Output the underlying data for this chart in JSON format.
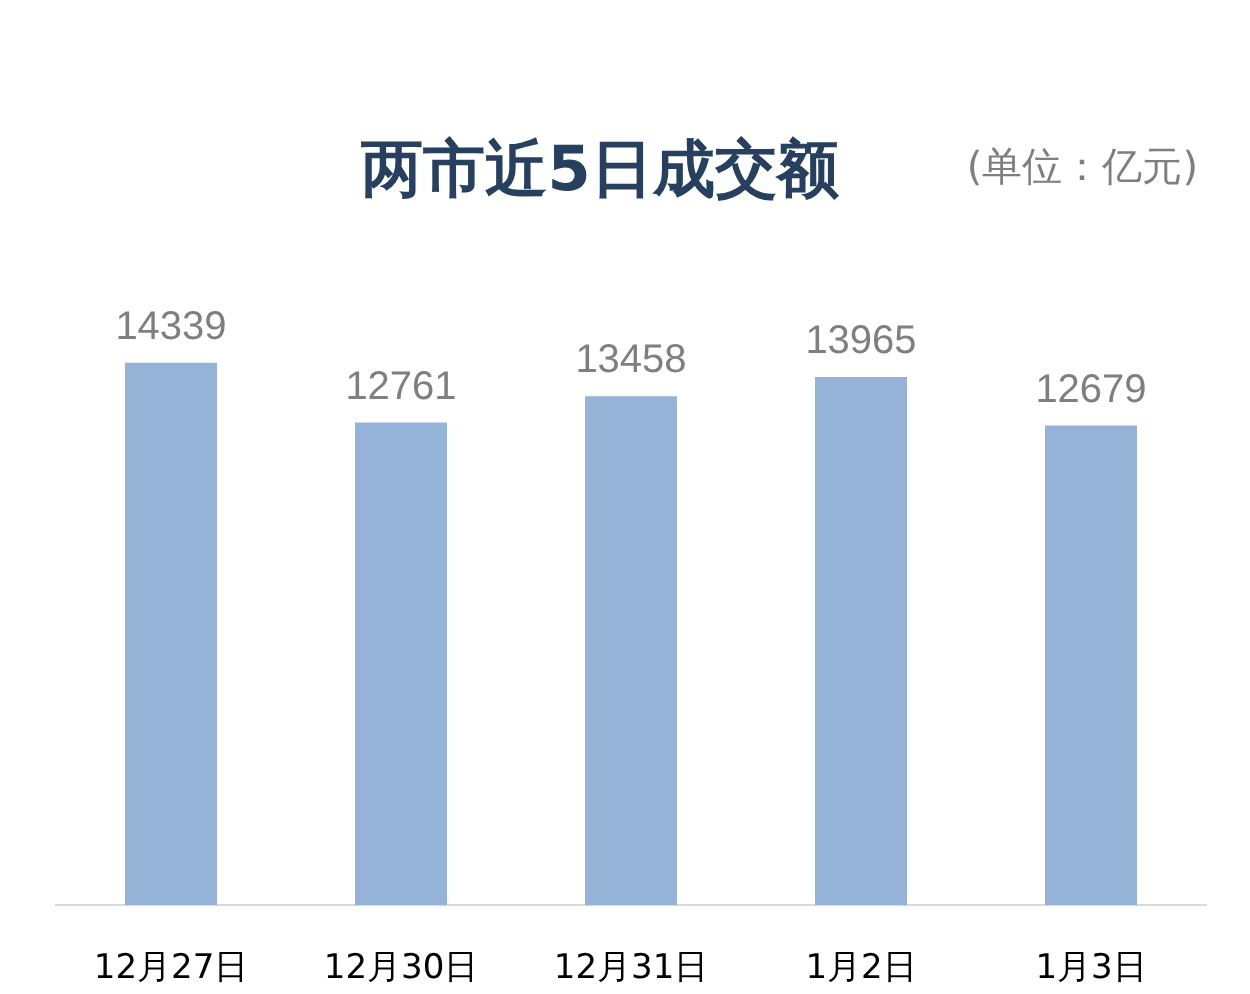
{
  "chart_data": {
    "type": "bar",
    "title": "两市近5日成交额",
    "annotations": [
      "(单位：亿元)"
    ],
    "categories": [
      "12月27日",
      "12月30日",
      "12月31日",
      "1月2日",
      "1月3日"
    ],
    "values": [
      14339,
      12761,
      13458,
      13965,
      12679
    ],
    "color": "#95b3d7",
    "data_labels": true
  }
}
